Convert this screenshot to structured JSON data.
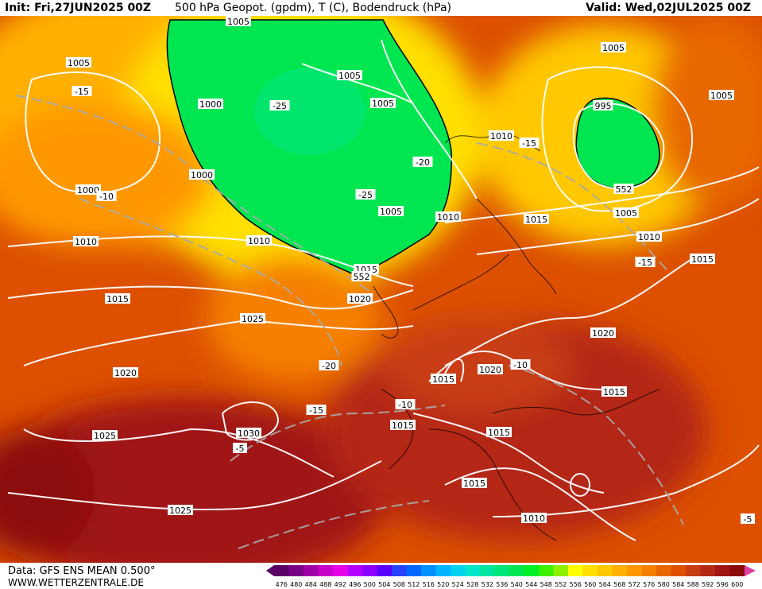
{
  "header": {
    "init": "Init: Fri,27JUN2025 00Z",
    "title": "500 hPa Geopot. (gpdm), T (C), Bodendruck (hPa)",
    "valid": "Valid: Wed,02JUL2025 00Z"
  },
  "footer": {
    "data": "Data: GFS ENS MEAN 0.500°",
    "site": "WWW.WETTERZENTRALE.DE"
  },
  "colorbar": {
    "values": [
      "476",
      "480",
      "484",
      "488",
      "492",
      "496",
      "500",
      "504",
      "508",
      "512",
      "516",
      "520",
      "524",
      "528",
      "532",
      "536",
      "540",
      "544",
      "548",
      "552",
      "556",
      "560",
      "564",
      "568",
      "572",
      "576",
      "580",
      "584",
      "588",
      "592",
      "596",
      "600"
    ],
    "colors": [
      "#5a0066",
      "#7a0087",
      "#a000a8",
      "#c800c8",
      "#e600e6",
      "#b400ff",
      "#8c00ff",
      "#5a00ff",
      "#2840ff",
      "#0066ff",
      "#0090ff",
      "#00b4ff",
      "#00d2f0",
      "#00e6c8",
      "#00e6a0",
      "#00e678",
      "#00e650",
      "#00f028",
      "#3cf000",
      "#8cf000",
      "#ffff00",
      "#ffe000",
      "#ffc800",
      "#ffb000",
      "#ff9800",
      "#f58000",
      "#e86800",
      "#dc5000",
      "#c83c14",
      "#b42814",
      "#a01414",
      "#8c0a0a"
    ]
  },
  "map": {
    "geopot_labels": [
      "552",
      "552"
    ],
    "pressure_labels": [
      "1005",
      "1005",
      "1000",
      "1005",
      "1005",
      "1000",
      "995",
      "1010",
      "1000",
      "1005",
      "1005",
      "1005",
      "1010",
      "1010",
      "1015",
      "1005",
      "1010",
      "1010",
      "1015",
      "1015",
      "1015",
      "1020",
      "1025",
      "1020",
      "1020",
      "1020",
      "1015",
      "1025",
      "1030",
      "1015",
      "1015",
      "1015",
      "1015",
      "1025",
      "1010"
    ],
    "temperature_labels": [
      "-15",
      "-25",
      "-20",
      "-25",
      "-10",
      "-15",
      "-15",
      "-20",
      "-15",
      "-10",
      "-10",
      "-5",
      "-5"
    ]
  }
}
